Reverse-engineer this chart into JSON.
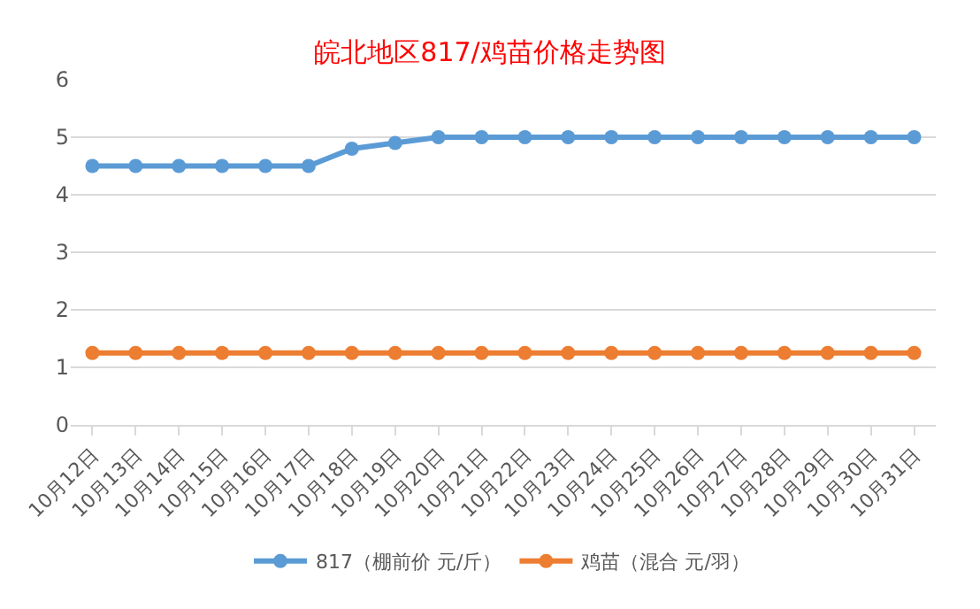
{
  "chart_data": {
    "type": "line",
    "title": "皖北地区817/鸡苗价格走势图",
    "categories": [
      "10月12日",
      "10月13日",
      "10月14日",
      "10月15日",
      "10月16日",
      "10月17日",
      "10月18日",
      "10月19日",
      "10月20日",
      "10月21日",
      "10月22日",
      "10月23日",
      "10月24日",
      "10月25日",
      "10月26日",
      "10月27日",
      "10月28日",
      "10月29日",
      "10月30日",
      "10月31日"
    ],
    "series": [
      {
        "name": "817（棚前价 元/斤）",
        "color": "#5b9bd5",
        "values": [
          4.5,
          4.5,
          4.5,
          4.5,
          4.5,
          4.5,
          4.8,
          4.9,
          5,
          5,
          5,
          5,
          5,
          5,
          5,
          5,
          5,
          5,
          5,
          5
        ]
      },
      {
        "name": "鸡苗（混合 元/羽）",
        "color": "#ed7d31",
        "values": [
          1.25,
          1.25,
          1.25,
          1.25,
          1.25,
          1.25,
          1.25,
          1.25,
          1.25,
          1.25,
          1.25,
          1.25,
          1.25,
          1.25,
          1.25,
          1.25,
          1.25,
          1.25,
          1.25,
          1.25
        ]
      }
    ],
    "ylim": [
      0,
      6
    ],
    "yticks": [
      0,
      1,
      2,
      3,
      4,
      5,
      6
    ],
    "grid": "y",
    "legend": "bottom",
    "marker": "circle",
    "line_style": "solid"
  }
}
